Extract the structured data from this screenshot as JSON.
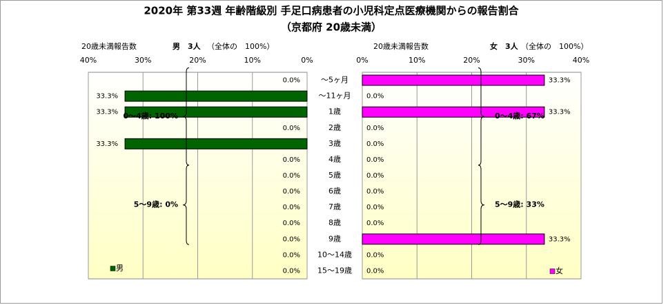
{
  "chart_data": {
    "type": "pyramid",
    "title": "2020年 第33週 年齢階級別 手足口病患者の小児科定点医療機関からの報告割合",
    "subtitle": "（京都府 20歳未満）",
    "categories": [
      "～5ヶ月",
      "～11ヶ月",
      "1歳",
      "2歳",
      "3歳",
      "4歳",
      "5歳",
      "6歳",
      "7歳",
      "8歳",
      "9歳",
      "10～14歳",
      "15～19歳"
    ],
    "xlim": [
      0,
      40
    ],
    "xticks": [
      {
        "value": 0,
        "label": "0%"
      },
      {
        "value": 10,
        "label": "10%"
      },
      {
        "value": 20,
        "label": "20%"
      },
      {
        "value": 30,
        "label": "30%"
      },
      {
        "value": 40,
        "label": "40%"
      }
    ],
    "grid": true,
    "series": [
      {
        "name": "男",
        "color": "#006400",
        "header": "20歳未満報告数",
        "summary_bold": "男　3人",
        "summary": "（全体の　100%）",
        "values": [
          0,
          33.3,
          33.3,
          0,
          33.3,
          0,
          0,
          0,
          0,
          0,
          0,
          0,
          0
        ],
        "value_labels": [
          "0.0%",
          "33.3%",
          "33.3%",
          "0.0%",
          "33.3%",
          "0.0%",
          "0.0%",
          "0.0%",
          "0.0%",
          "0.0%",
          "0.0%",
          "0.0%",
          "0.0%"
        ],
        "annotations": [
          "0～4歳: 100%",
          "5～9歳: 0%"
        ]
      },
      {
        "name": "女",
        "color": "#ff00ff",
        "header": "20歳未満報告数",
        "summary_bold": "女　3人",
        "summary": "（全体の　100%）",
        "values": [
          33.3,
          0,
          33.3,
          0,
          0,
          0,
          0,
          0,
          0,
          0,
          33.3,
          0,
          0
        ],
        "value_labels": [
          "33.3%",
          "0.0%",
          "33.3%",
          "0.0%",
          "0.0%",
          "0.0%",
          "0.0%",
          "0.0%",
          "0.0%",
          "0.0%",
          "33.3%",
          "0.0%",
          "0.0%"
        ],
        "annotations": [
          "0～4歳: 67%",
          "5～9歳: 33%"
        ]
      }
    ]
  }
}
